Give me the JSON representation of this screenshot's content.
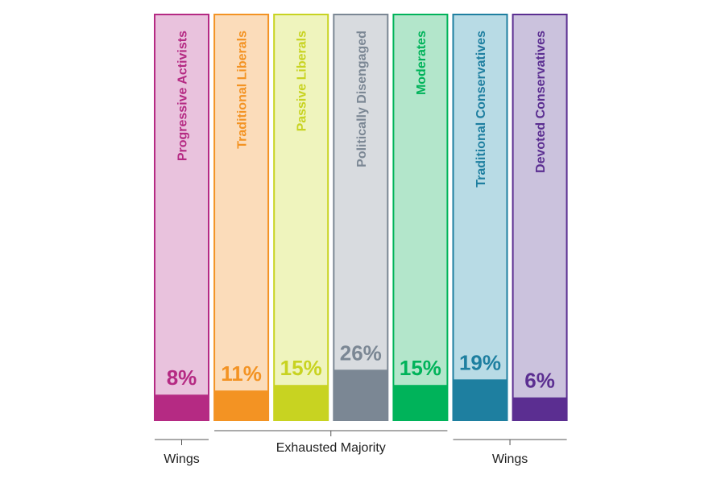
{
  "chart_data": {
    "type": "bar",
    "title": "",
    "xlabel": "",
    "ylabel": "",
    "ylim": [
      0,
      100
    ],
    "grid": false,
    "categories": [
      "Progressive Activists",
      "Traditional Liberals",
      "Passive Liberals",
      "Politically Disengaged",
      "Moderates",
      "Traditional Conservatives",
      "Devoted Conservatives"
    ],
    "values": [
      8,
      11,
      15,
      26,
      15,
      19,
      6
    ],
    "value_labels": [
      "8%",
      "11%",
      "15%",
      "26%",
      "15%",
      "19%",
      "6%"
    ],
    "colors": [
      {
        "fill": "#b52a83",
        "light": "#e9c2dd",
        "text": "#b52a83"
      },
      {
        "fill": "#f39323",
        "light": "#fbdcba",
        "text": "#f39323"
      },
      {
        "fill": "#c8d321",
        "light": "#eff4bd",
        "text": "#c8d321"
      },
      {
        "fill": "#7b8794",
        "light": "#d8dbdf",
        "text": "#7b8794"
      },
      {
        "fill": "#00b35a",
        "light": "#b3e6cb",
        "text": "#00b35a"
      },
      {
        "fill": "#1e7fa0",
        "light": "#b8dbe5",
        "text": "#1e7fa0"
      },
      {
        "fill": "#5b2e91",
        "light": "#cbc2dd",
        "text": "#5b2e91"
      }
    ],
    "groups": [
      {
        "label": "Wings",
        "from": 0,
        "to": 0
      },
      {
        "label": "Exhausted Majority",
        "from": 1,
        "to": 4
      },
      {
        "label": "Wings",
        "from": 5,
        "to": 6
      }
    ]
  }
}
